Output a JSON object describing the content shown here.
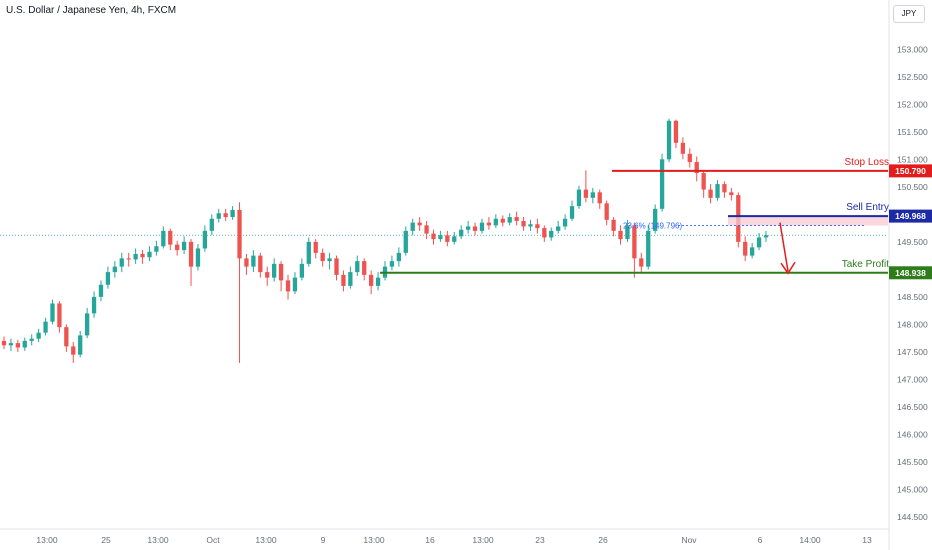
{
  "header": {
    "title": "U.S. Dollar / Japanese Yen, 4h, FXCM",
    "currency": "JPY"
  },
  "colors": {
    "up": "#26a69a",
    "down": "#ef5350",
    "stop": "#e31b1b",
    "entry": "#1c2aa6",
    "target": "#2e7d1a",
    "zone": "#f8c9d0"
  },
  "chart_data": {
    "type": "candlestick",
    "ylim": [
      144.3,
      153.35
    ],
    "y_ticks": [
      "153.000",
      "152.500",
      "152.000",
      "151.500",
      "151.000",
      "150.500",
      "150.000",
      "149.500",
      "149.000",
      "148.500",
      "148.000",
      "147.500",
      "147.000",
      "146.500",
      "146.000",
      "145.500",
      "145.000",
      "144.500"
    ],
    "x_ticks": [
      "13:00",
      "25",
      "13:00",
      "Oct",
      "13:00",
      "9",
      "13:00",
      "16",
      "13:00",
      "23",
      "26",
      "Nov",
      "6",
      "14:00",
      "13"
    ],
    "last_price": 149.62,
    "levels": [
      {
        "key": "stop",
        "name": "Stop Loss",
        "value": "150.790",
        "price": 150.79,
        "color": "#e31b1b"
      },
      {
        "key": "entry",
        "name": "Sell Entry",
        "value": "149.968",
        "price": 149.968,
        "color": "#1c2aa6"
      },
      {
        "key": "target",
        "name": "Take Profit",
        "value": "148.938",
        "price": 148.938,
        "color": "#2e7d1a"
      }
    ],
    "fib_label": "23.6% (149.796)",
    "fib_price": 149.796,
    "candles": [
      [
        147.7,
        147.62,
        147.78,
        147.55
      ],
      [
        147.62,
        147.66,
        147.74,
        147.52
      ],
      [
        147.66,
        147.58,
        147.72,
        147.5
      ],
      [
        147.58,
        147.7,
        147.76,
        147.52
      ],
      [
        147.7,
        147.74,
        147.82,
        147.62
      ],
      [
        147.74,
        147.85,
        147.92,
        147.68
      ],
      [
        147.85,
        148.05,
        148.12,
        147.8
      ],
      [
        148.05,
        148.38,
        148.45,
        148.0
      ],
      [
        148.38,
        147.95,
        148.42,
        147.85
      ],
      [
        147.95,
        147.6,
        148.0,
        147.5
      ],
      [
        147.6,
        147.45,
        147.68,
        147.3
      ],
      [
        147.45,
        147.8,
        147.88,
        147.4
      ],
      [
        147.8,
        148.2,
        148.3,
        147.75
      ],
      [
        148.2,
        148.5,
        148.6,
        148.12
      ],
      [
        148.5,
        148.72,
        148.8,
        148.42
      ],
      [
        148.72,
        148.95,
        149.05,
        148.65
      ],
      [
        148.95,
        149.05,
        149.15,
        148.85
      ],
      [
        149.05,
        149.2,
        149.3,
        148.95
      ],
      [
        149.2,
        149.18,
        149.3,
        149.05
      ],
      [
        149.18,
        149.28,
        149.38,
        149.1
      ],
      [
        149.28,
        149.22,
        149.35,
        149.1
      ],
      [
        149.22,
        149.32,
        149.42,
        149.15
      ],
      [
        149.32,
        149.42,
        149.52,
        149.25
      ],
      [
        149.42,
        149.7,
        149.78,
        149.38
      ],
      [
        149.7,
        149.45,
        149.74,
        149.35
      ],
      [
        149.45,
        149.35,
        149.52,
        149.25
      ],
      [
        149.35,
        149.5,
        149.6,
        149.28
      ],
      [
        149.5,
        149.05,
        149.55,
        148.7
      ],
      [
        149.05,
        149.38,
        149.46,
        148.98
      ],
      [
        149.38,
        149.7,
        149.8,
        149.32
      ],
      [
        149.7,
        149.92,
        150.0,
        149.62
      ],
      [
        149.92,
        150.02,
        150.1,
        149.85
      ],
      [
        150.02,
        149.95,
        150.1,
        149.88
      ],
      [
        149.95,
        150.08,
        150.15,
        149.9
      ],
      [
        150.08,
        149.2,
        150.22,
        147.3
      ],
      [
        149.2,
        149.05,
        149.28,
        148.9
      ],
      [
        149.05,
        149.25,
        149.35,
        148.95
      ],
      [
        149.25,
        148.95,
        149.3,
        148.85
      ],
      [
        148.95,
        148.85,
        149.05,
        148.7
      ],
      [
        148.85,
        149.1,
        149.2,
        148.78
      ],
      [
        149.1,
        148.8,
        149.15,
        148.6
      ],
      [
        148.8,
        148.6,
        148.9,
        148.45
      ],
      [
        148.6,
        148.85,
        148.95,
        148.55
      ],
      [
        148.85,
        149.1,
        149.2,
        148.8
      ],
      [
        149.1,
        149.5,
        149.58,
        149.05
      ],
      [
        149.5,
        149.3,
        149.55,
        149.2
      ],
      [
        149.3,
        149.15,
        149.38,
        149.05
      ],
      [
        149.15,
        149.2,
        149.3,
        149.0
      ],
      [
        149.2,
        148.9,
        149.25,
        148.8
      ],
      [
        148.9,
        148.7,
        148.98,
        148.6
      ],
      [
        148.7,
        148.95,
        149.05,
        148.65
      ],
      [
        148.95,
        149.15,
        149.25,
        148.88
      ],
      [
        149.15,
        148.9,
        149.2,
        148.8
      ],
      [
        148.9,
        148.7,
        148.98,
        148.55
      ],
      [
        148.7,
        148.85,
        148.95,
        148.62
      ],
      [
        148.85,
        149.05,
        149.15,
        148.8
      ],
      [
        149.05,
        149.15,
        149.25,
        148.98
      ],
      [
        149.15,
        149.3,
        149.4,
        149.05
      ],
      [
        149.3,
        149.7,
        149.78,
        149.25
      ],
      [
        149.7,
        149.85,
        149.92,
        149.62
      ],
      [
        149.85,
        149.8,
        149.95,
        149.7
      ],
      [
        149.8,
        149.65,
        149.88,
        149.55
      ],
      [
        149.65,
        149.55,
        149.72,
        149.45
      ],
      [
        149.55,
        149.62,
        149.7,
        149.5
      ],
      [
        149.62,
        149.5,
        149.7,
        149.42
      ],
      [
        149.5,
        149.6,
        149.68,
        149.45
      ],
      [
        149.6,
        149.72,
        149.8,
        149.55
      ],
      [
        149.72,
        149.78,
        149.88,
        149.65
      ],
      [
        149.78,
        149.7,
        149.85,
        149.62
      ],
      [
        149.7,
        149.85,
        149.92,
        149.65
      ],
      [
        149.85,
        149.8,
        149.95,
        149.72
      ],
      [
        149.8,
        149.92,
        150.0,
        149.75
      ],
      [
        149.92,
        149.85,
        149.98,
        149.78
      ],
      [
        149.85,
        149.95,
        150.02,
        149.8
      ],
      [
        149.95,
        149.88,
        150.05,
        149.8
      ],
      [
        149.88,
        149.78,
        149.95,
        149.7
      ],
      [
        149.78,
        149.82,
        149.9,
        149.7
      ],
      [
        149.82,
        149.75,
        149.92,
        149.65
      ],
      [
        149.75,
        149.58,
        149.8,
        149.5
      ],
      [
        149.58,
        149.7,
        149.76,
        149.52
      ],
      [
        149.7,
        149.78,
        149.88,
        149.65
      ],
      [
        149.78,
        149.92,
        150.0,
        149.72
      ],
      [
        149.92,
        150.15,
        150.25,
        149.88
      ],
      [
        150.15,
        150.45,
        150.52,
        150.1
      ],
      [
        150.45,
        150.3,
        150.8,
        150.22
      ],
      [
        150.3,
        150.4,
        150.48,
        150.2
      ],
      [
        150.4,
        150.2,
        150.45,
        150.1
      ],
      [
        150.2,
        149.9,
        150.25,
        149.8
      ],
      [
        149.9,
        149.7,
        149.95,
        149.6
      ],
      [
        149.7,
        149.55,
        149.8,
        149.45
      ],
      [
        149.55,
        149.8,
        149.9,
        149.5
      ],
      [
        149.8,
        149.2,
        149.85,
        148.85
      ],
      [
        149.2,
        149.05,
        149.3,
        148.95
      ],
      [
        149.05,
        149.7,
        149.8,
        149.0
      ],
      [
        149.7,
        150.1,
        150.18,
        149.65
      ],
      [
        150.1,
        151.0,
        151.1,
        150.05
      ],
      [
        151.0,
        151.7,
        151.74,
        150.95
      ],
      [
        151.7,
        151.3,
        151.72,
        151.2
      ],
      [
        151.3,
        151.1,
        151.4,
        151.0
      ],
      [
        151.1,
        150.95,
        151.2,
        150.85
      ],
      [
        150.95,
        150.75,
        151.05,
        150.6
      ],
      [
        150.75,
        150.45,
        150.8,
        150.3
      ],
      [
        150.45,
        150.3,
        150.55,
        150.2
      ],
      [
        150.3,
        150.55,
        150.62,
        150.25
      ],
      [
        150.55,
        150.4,
        150.6,
        150.3
      ],
      [
        150.4,
        150.35,
        150.48,
        150.25
      ],
      [
        150.35,
        149.5,
        150.4,
        149.4
      ],
      [
        149.5,
        149.25,
        149.6,
        149.15
      ],
      [
        149.25,
        149.4,
        149.48,
        149.2
      ],
      [
        149.4,
        149.58,
        149.66,
        149.35
      ],
      [
        149.58,
        149.62,
        149.7,
        149.5
      ]
    ]
  }
}
